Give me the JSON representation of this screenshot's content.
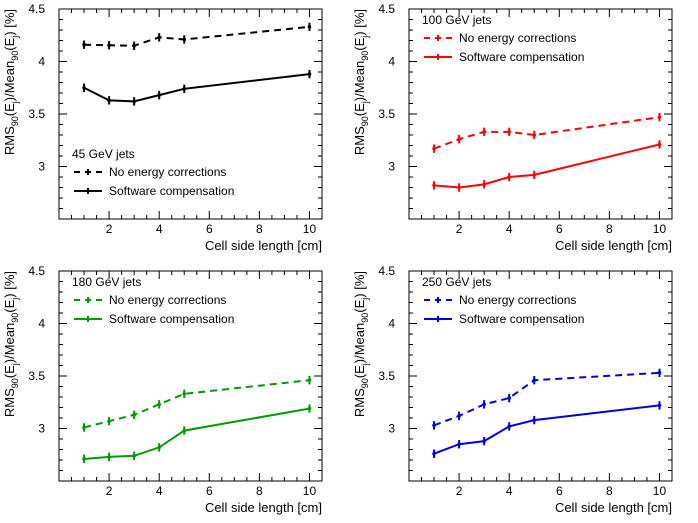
{
  "chart_data": [
    {
      "type": "line",
      "title": "45 GeV jets",
      "xlabel": "Cell side length [cm]",
      "ylabel": "RMS90(Ej)/Mean90(Ej) [%]",
      "ylabel_parts": {
        "a": "RMS",
        "b": "90",
        "c": "(E",
        "d": "j",
        "e": ")/Mean",
        "f": "90",
        "g": "(E",
        "h": "j",
        "i": ") [%]"
      },
      "xlim": [
        0,
        10.5
      ],
      "ylim": [
        2.5,
        4.5
      ],
      "xticks": [
        "2",
        "4",
        "6",
        "8",
        "10"
      ],
      "yticks": [
        "3",
        "3.5",
        "4",
        "4.5"
      ],
      "legend_position": "bottom-left",
      "color": "#000000",
      "series": [
        {
          "name": "No energy corrections",
          "style": "dashed",
          "x": [
            1,
            2,
            3,
            4,
            5,
            10
          ],
          "y": [
            4.16,
            4.155,
            4.15,
            4.23,
            4.21,
            4.33
          ],
          "err": [
            0.04,
            0.04,
            0.04,
            0.04,
            0.04,
            0.04
          ]
        },
        {
          "name": "Software compensation",
          "style": "solid",
          "x": [
            1,
            2,
            3,
            4,
            5,
            10
          ],
          "y": [
            3.75,
            3.63,
            3.62,
            3.68,
            3.74,
            3.88
          ],
          "err": [
            0.04,
            0.04,
            0.04,
            0.04,
            0.04,
            0.04
          ]
        }
      ]
    },
    {
      "type": "line",
      "title": "100 GeV jets",
      "xlabel": "Cell side length [cm]",
      "ylabel": "RMS90(Ej)/Mean90(Ej) [%]",
      "ylabel_parts": {
        "a": "RMS",
        "b": "90",
        "c": "(E",
        "d": "j",
        "e": ")/Mean",
        "f": "90",
        "g": "(E",
        "h": "j",
        "i": ") [%]"
      },
      "xlim": [
        0,
        10.5
      ],
      "ylim": [
        2.5,
        4.5
      ],
      "xticks": [
        "2",
        "4",
        "6",
        "8",
        "10"
      ],
      "yticks": [
        "3",
        "3.5",
        "4",
        "4.5"
      ],
      "legend_position": "top-left",
      "color": "#ff0000",
      "series": [
        {
          "name": "No energy corrections",
          "style": "dashed",
          "x": [
            1,
            2,
            3,
            4,
            5,
            10
          ],
          "y": [
            3.17,
            3.26,
            3.33,
            3.33,
            3.3,
            3.47
          ],
          "err": [
            0.04,
            0.04,
            0.04,
            0.04,
            0.04,
            0.04
          ]
        },
        {
          "name": "Software compensation",
          "style": "solid",
          "x": [
            1,
            2,
            3,
            4,
            5,
            10
          ],
          "y": [
            2.82,
            2.8,
            2.83,
            2.9,
            2.92,
            3.21
          ],
          "err": [
            0.04,
            0.04,
            0.04,
            0.04,
            0.04,
            0.04
          ]
        }
      ]
    },
    {
      "type": "line",
      "title": "180 GeV jets",
      "xlabel": "Cell side length [cm]",
      "ylabel": "RMS90(Ej)/Mean90(Ej) [%]",
      "ylabel_parts": {
        "a": "RMS",
        "b": "90",
        "c": "(E",
        "d": "j",
        "e": ")/Mean",
        "f": "90",
        "g": "(E",
        "h": "j",
        "i": ") [%]"
      },
      "xlim": [
        0,
        10.5
      ],
      "ylim": [
        2.5,
        4.5
      ],
      "xticks": [
        "2",
        "4",
        "6",
        "8",
        "10"
      ],
      "yticks": [
        "3",
        "3.5",
        "4",
        "4.5"
      ],
      "legend_position": "top-left",
      "color": "#009900",
      "series": [
        {
          "name": "No energy corrections",
          "style": "dashed",
          "x": [
            1,
            2,
            3,
            4,
            5,
            10
          ],
          "y": [
            3.01,
            3.07,
            3.13,
            3.23,
            3.33,
            3.46
          ],
          "err": [
            0.04,
            0.04,
            0.04,
            0.04,
            0.04,
            0.04
          ]
        },
        {
          "name": "Software compensation",
          "style": "solid",
          "x": [
            1,
            2,
            3,
            4,
            5,
            10
          ],
          "y": [
            2.71,
            2.73,
            2.74,
            2.82,
            2.98,
            3.19
          ],
          "err": [
            0.04,
            0.04,
            0.04,
            0.04,
            0.04,
            0.04
          ]
        }
      ]
    },
    {
      "type": "line",
      "title": "250 GeV jets",
      "xlabel": "Cell side length [cm]",
      "ylabel": "RMS90(Ej)/Mean90(Ej) [%]",
      "ylabel_parts": {
        "a": "RMS",
        "b": "90",
        "c": "(E",
        "d": "j",
        "e": ")/Mean",
        "f": "90",
        "g": "(E",
        "h": "j",
        "i": ") [%]"
      },
      "xlim": [
        0,
        10.5
      ],
      "ylim": [
        2.5,
        4.5
      ],
      "xticks": [
        "2",
        "4",
        "6",
        "8",
        "10"
      ],
      "yticks": [
        "3",
        "3.5",
        "4",
        "4.5"
      ],
      "legend_position": "top-left",
      "color": "#0000dd",
      "series": [
        {
          "name": "No energy corrections",
          "style": "dashed",
          "x": [
            1,
            2,
            3,
            4,
            5,
            10
          ],
          "y": [
            3.03,
            3.12,
            3.23,
            3.29,
            3.46,
            3.53
          ],
          "err": [
            0.04,
            0.04,
            0.04,
            0.04,
            0.04,
            0.04
          ]
        },
        {
          "name": "Software compensation",
          "style": "solid",
          "x": [
            1,
            2,
            3,
            4,
            5,
            10
          ],
          "y": [
            2.76,
            2.85,
            2.88,
            3.02,
            3.08,
            3.22
          ],
          "err": [
            0.04,
            0.04,
            0.04,
            0.04,
            0.04,
            0.04
          ]
        }
      ]
    }
  ]
}
